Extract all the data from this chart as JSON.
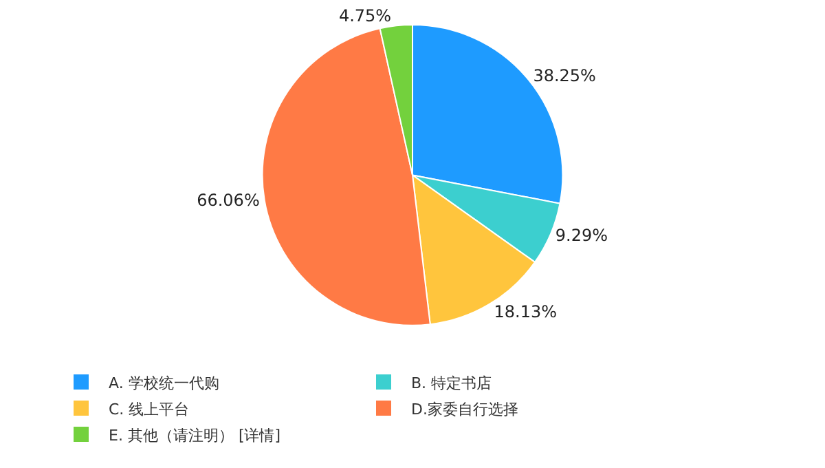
{
  "chart_data": {
    "type": "pie",
    "categories": [
      "A. 学校统一代购",
      "B. 特定书店",
      "C. 线上平台",
      "D.家委自行选择",
      "E. 其他（请注明） [详情]"
    ],
    "values": [
      38.25,
      9.29,
      18.13,
      66.06,
      4.75
    ],
    "colors": [
      "#1e9bff",
      "#3ccfcf",
      "#ffc53d",
      "#ff7a45",
      "#73d13d"
    ],
    "value_labels": [
      "38.25%",
      "9.29%",
      "18.13%",
      "66.06%",
      "4.75%"
    ],
    "legend": "bottom"
  }
}
